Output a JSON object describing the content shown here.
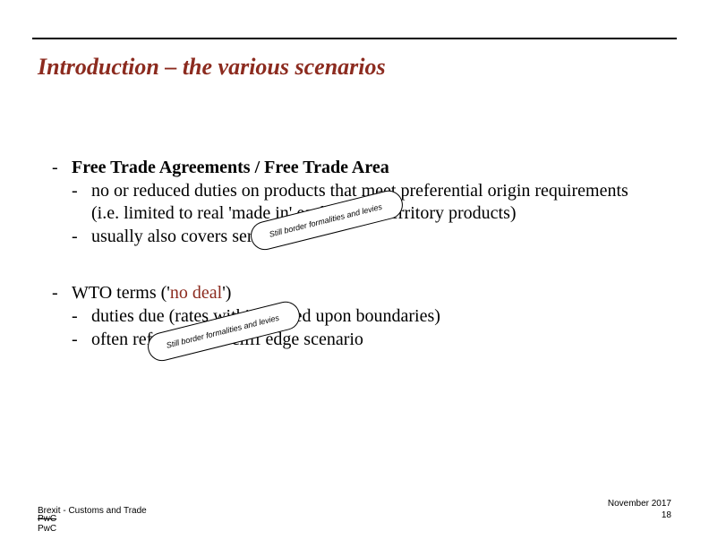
{
  "title": "Introduction – the various scenarios",
  "fta": {
    "heading": "Free Trade Agreements / Free Trade Area",
    "item1_a": "no or reduced duties on products that meet preferential origin requirements",
    "item1_b": "(i.e. limited to real 'made in' each other's territory products)",
    "item2": "usually also covers services"
  },
  "wto": {
    "heading_pre": "WTO terms ('",
    "heading_accent": "no deal",
    "heading_post": "')",
    "item1": "duties due (rates within agreed upon boundaries)",
    "item2": "often referred to as cliff edge scenario"
  },
  "bubble_text": "Still border formalities and levies",
  "footer": {
    "left": "Brexit - Customs and Trade",
    "logo_line1": "PwC",
    "logo_line2": "PwC",
    "date": "November 2017",
    "page": "18"
  },
  "colors": {
    "accent": "#8c2b1f",
    "text": "#000000",
    "background": "#ffffff"
  }
}
